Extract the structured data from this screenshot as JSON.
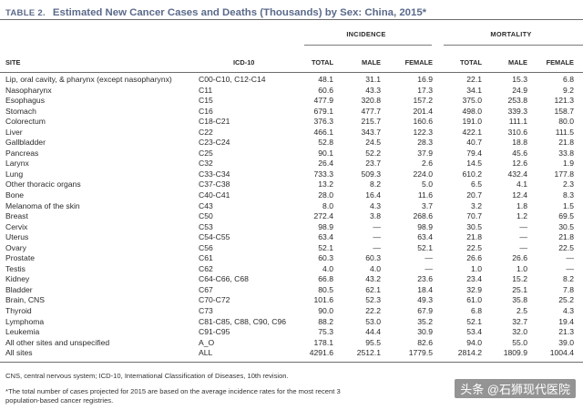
{
  "title": {
    "label": "TABLE 2.",
    "text": "Estimated New Cancer Cases and Deaths (Thousands) by Sex: China, 2015*"
  },
  "groups": {
    "incidence": "INCIDENCE",
    "mortality": "MORTALITY"
  },
  "headers": {
    "site": "SITE",
    "icd": "ICD-10",
    "inc_total": "TOTAL",
    "inc_male": "MALE",
    "inc_female": "FEMALE",
    "mort_total": "TOTAL",
    "mort_male": "MALE",
    "mort_female": "FEMALE"
  },
  "rows": [
    [
      "Lip, oral cavity, & pharynx (except nasopharynx)",
      "C00-C10, C12-C14",
      "48.1",
      "31.1",
      "16.9",
      "22.1",
      "15.3",
      "6.8"
    ],
    [
      "Nasopharynx",
      "C11",
      "60.6",
      "43.3",
      "17.3",
      "34.1",
      "24.9",
      "9.2"
    ],
    [
      "Esophagus",
      "C15",
      "477.9",
      "320.8",
      "157.2",
      "375.0",
      "253.8",
      "121.3"
    ],
    [
      "Stomach",
      "C16",
      "679.1",
      "477.7",
      "201.4",
      "498.0",
      "339.3",
      "158.7"
    ],
    [
      "Colorectum",
      "C18-C21",
      "376.3",
      "215.7",
      "160.6",
      "191.0",
      "111.1",
      "80.0"
    ],
    [
      "Liver",
      "C22",
      "466.1",
      "343.7",
      "122.3",
      "422.1",
      "310.6",
      "111.5"
    ],
    [
      "Gallbladder",
      "C23-C24",
      "52.8",
      "24.5",
      "28.3",
      "40.7",
      "18.8",
      "21.8"
    ],
    [
      "Pancreas",
      "C25",
      "90.1",
      "52.2",
      "37.9",
      "79.4",
      "45.6",
      "33.8"
    ],
    [
      "Larynx",
      "C32",
      "26.4",
      "23.7",
      "2.6",
      "14.5",
      "12.6",
      "1.9"
    ],
    [
      "Lung",
      "C33-C34",
      "733.3",
      "509.3",
      "224.0",
      "610.2",
      "432.4",
      "177.8"
    ],
    [
      "Other thoracic organs",
      "C37-C38",
      "13.2",
      "8.2",
      "5.0",
      "6.5",
      "4.1",
      "2.3"
    ],
    [
      "Bone",
      "C40-C41",
      "28.0",
      "16.4",
      "11.6",
      "20.7",
      "12.4",
      "8.3"
    ],
    [
      "Melanoma of the skin",
      "C43",
      "8.0",
      "4.3",
      "3.7",
      "3.2",
      "1.8",
      "1.5"
    ],
    [
      "Breast",
      "C50",
      "272.4",
      "3.8",
      "268.6",
      "70.7",
      "1.2",
      "69.5"
    ],
    [
      "Cervix",
      "C53",
      "98.9",
      "—",
      "98.9",
      "30.5",
      "—",
      "30.5"
    ],
    [
      "Uterus",
      "C54-C55",
      "63.4",
      "—",
      "63.4",
      "21.8",
      "—",
      "21.8"
    ],
    [
      "Ovary",
      "C56",
      "52.1",
      "—",
      "52.1",
      "22.5",
      "—",
      "22.5"
    ],
    [
      "Prostate",
      "C61",
      "60.3",
      "60.3",
      "—",
      "26.6",
      "26.6",
      "—"
    ],
    [
      "Testis",
      "C62",
      "4.0",
      "4.0",
      "—",
      "1.0",
      "1.0",
      "—"
    ],
    [
      "Kidney",
      "C64-C66, C68",
      "66.8",
      "43.2",
      "23.6",
      "23.4",
      "15.2",
      "8.2"
    ],
    [
      "Bladder",
      "C67",
      "80.5",
      "62.1",
      "18.4",
      "32.9",
      "25.1",
      "7.8"
    ],
    [
      "Brain, CNS",
      "C70-C72",
      "101.6",
      "52.3",
      "49.3",
      "61.0",
      "35.8",
      "25.2"
    ],
    [
      "Thyroid",
      "C73",
      "90.0",
      "22.2",
      "67.9",
      "6.8",
      "2.5",
      "4.3"
    ],
    [
      "Lymphoma",
      "C81-C85, C88, C90, C96",
      "88.2",
      "53.0",
      "35.2",
      "52.1",
      "32.7",
      "19.4"
    ],
    [
      "Leukemia",
      "C91-C95",
      "75.3",
      "44.4",
      "30.9",
      "53.4",
      "32.0",
      "21.3"
    ],
    [
      "All other sites and unspecified",
      "A_O",
      "178.1",
      "95.5",
      "82.6",
      "94.0",
      "55.0",
      "39.0"
    ],
    [
      "All sites",
      "ALL",
      "4291.6",
      "2512.1",
      "1779.5",
      "2814.2",
      "1809.9",
      "1004.4"
    ]
  ],
  "notes": {
    "abbrev": "CNS, central nervous system; ICD-10, International Classification of Diseases, 10th revision.",
    "footnote_line1": "*The total number of cases projected for 2015 are based on the average incidence rates for the most recent 3",
    "footnote_line2": "population-based cancer registries."
  },
  "watermark": "头条 @石狮现代医院"
}
